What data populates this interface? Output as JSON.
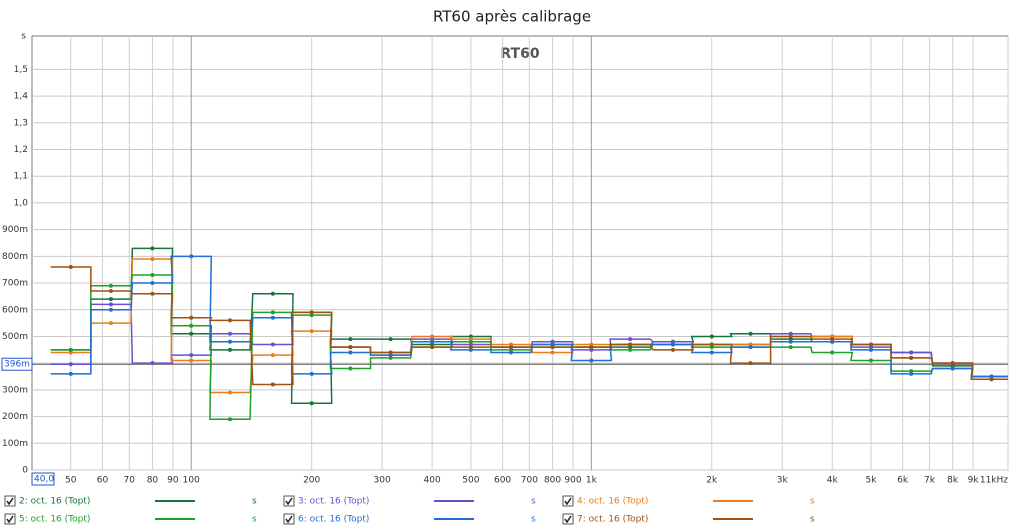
{
  "chart_data": {
    "type": "step",
    "title": "RT60 après calibrage",
    "inner_title": "RT60",
    "y_unit": "s",
    "log_x": true,
    "grid": true,
    "xlim": [
      40,
      11000
    ],
    "ylim": [
      0,
      1.625
    ],
    "x_cursor": {
      "value": 40,
      "label": "40,0"
    },
    "reference_line": {
      "value": 0.396,
      "label": "396m"
    },
    "xticks": [
      50,
      60,
      70,
      80,
      90,
      100,
      200,
      300,
      400,
      500,
      600,
      700,
      800,
      900,
      {
        "value": 1000,
        "label": "1k"
      },
      {
        "value": 2000,
        "label": "2k"
      },
      {
        "value": 3000,
        "label": "3k"
      },
      {
        "value": 4000,
        "label": "4k"
      },
      {
        "value": 5000,
        "label": "5k"
      },
      {
        "value": 6000,
        "label": "6k"
      },
      {
        "value": 7000,
        "label": "7k"
      },
      {
        "value": 8000,
        "label": "8k"
      },
      {
        "value": 9000,
        "label": "9k"
      },
      {
        "value": 11000,
        "label": "11kHz"
      }
    ],
    "yticks": [
      0,
      {
        "value": 0.1,
        "label": "100m"
      },
      {
        "value": 0.2,
        "label": "200m"
      },
      {
        "value": 0.3,
        "label": "300m"
      },
      {
        "value": 0.4,
        "label": "400m"
      },
      {
        "value": 0.5,
        "label": "500m"
      },
      {
        "value": 0.6,
        "label": "600m"
      },
      {
        "value": 0.7,
        "label": "700m"
      },
      {
        "value": 0.8,
        "label": "800m"
      },
      {
        "value": 0.9,
        "label": "900m"
      },
      {
        "value": 1.0,
        "label": "1,0"
      },
      {
        "value": 1.1,
        "label": "1,1"
      },
      {
        "value": 1.2,
        "label": "1,2"
      },
      {
        "value": 1.3,
        "label": "1,3"
      },
      {
        "value": 1.4,
        "label": "1,4"
      },
      {
        "value": 1.5,
        "label": "1,5"
      }
    ],
    "x": [
      50,
      63,
      80,
      100,
      125,
      160,
      200,
      250,
      315,
      400,
      500,
      630,
      800,
      1000,
      1250,
      1600,
      2000,
      2500,
      3150,
      4000,
      5000,
      6300,
      8000,
      10000
    ],
    "series": [
      {
        "name": "2: oct. 16 (Topt)",
        "color": "#16753a",
        "values": [
          0.45,
          0.64,
          0.83,
          0.51,
          0.45,
          0.66,
          0.25,
          0.49,
          0.49,
          0.47,
          0.5,
          0.46,
          0.47,
          0.46,
          0.46,
          0.48,
          0.5,
          0.51,
          0.49,
          0.48,
          0.47,
          0.44,
          0.39,
          0.35
        ]
      },
      {
        "name": "3: oct. 16 (Topt)",
        "color": "#6a4fd0",
        "values": [
          0.396,
          0.62,
          0.4,
          0.43,
          0.51,
          0.47,
          0.59,
          0.46,
          0.44,
          0.49,
          0.47,
          0.46,
          0.48,
          0.45,
          0.49,
          0.48,
          0.47,
          0.47,
          0.51,
          0.5,
          0.46,
          0.44,
          0.4,
          0.35
        ]
      },
      {
        "name": "4: oct. 16 (Topt)",
        "color": "#e87d1a",
        "values": [
          0.44,
          0.55,
          0.79,
          0.41,
          0.29,
          0.43,
          0.52,
          0.46,
          0.43,
          0.5,
          0.49,
          0.47,
          0.44,
          0.47,
          0.47,
          0.47,
          0.47,
          0.47,
          0.5,
          0.5,
          0.47,
          0.42,
          0.4,
          0.35
        ]
      },
      {
        "name": "5: oct. 16 (Topt)",
        "color": "#1fa02a",
        "values": [
          0.45,
          0.69,
          0.73,
          0.54,
          0.19,
          0.59,
          0.58,
          0.38,
          0.42,
          0.46,
          0.48,
          0.45,
          0.46,
          0.46,
          0.45,
          0.47,
          0.46,
          0.46,
          0.46,
          0.44,
          0.41,
          0.37,
          0.38,
          0.34
        ]
      },
      {
        "name": "6: oct. 16 (Topt)",
        "color": "#1f6fd6",
        "values": [
          0.36,
          0.6,
          0.7,
          0.8,
          0.48,
          0.57,
          0.36,
          0.44,
          0.43,
          0.48,
          0.45,
          0.44,
          0.47,
          0.41,
          0.47,
          0.47,
          0.44,
          0.46,
          0.48,
          0.48,
          0.45,
          0.36,
          0.38,
          0.35
        ]
      },
      {
        "name": "7: oct. 16 (Topt)",
        "color": "#a0520f",
        "values": [
          0.76,
          0.67,
          0.66,
          0.57,
          0.56,
          0.32,
          0.59,
          0.46,
          0.44,
          0.46,
          0.46,
          0.46,
          0.46,
          0.46,
          0.47,
          0.45,
          0.47,
          0.4,
          0.5,
          0.49,
          0.47,
          0.42,
          0.4,
          0.34
        ]
      }
    ]
  }
}
